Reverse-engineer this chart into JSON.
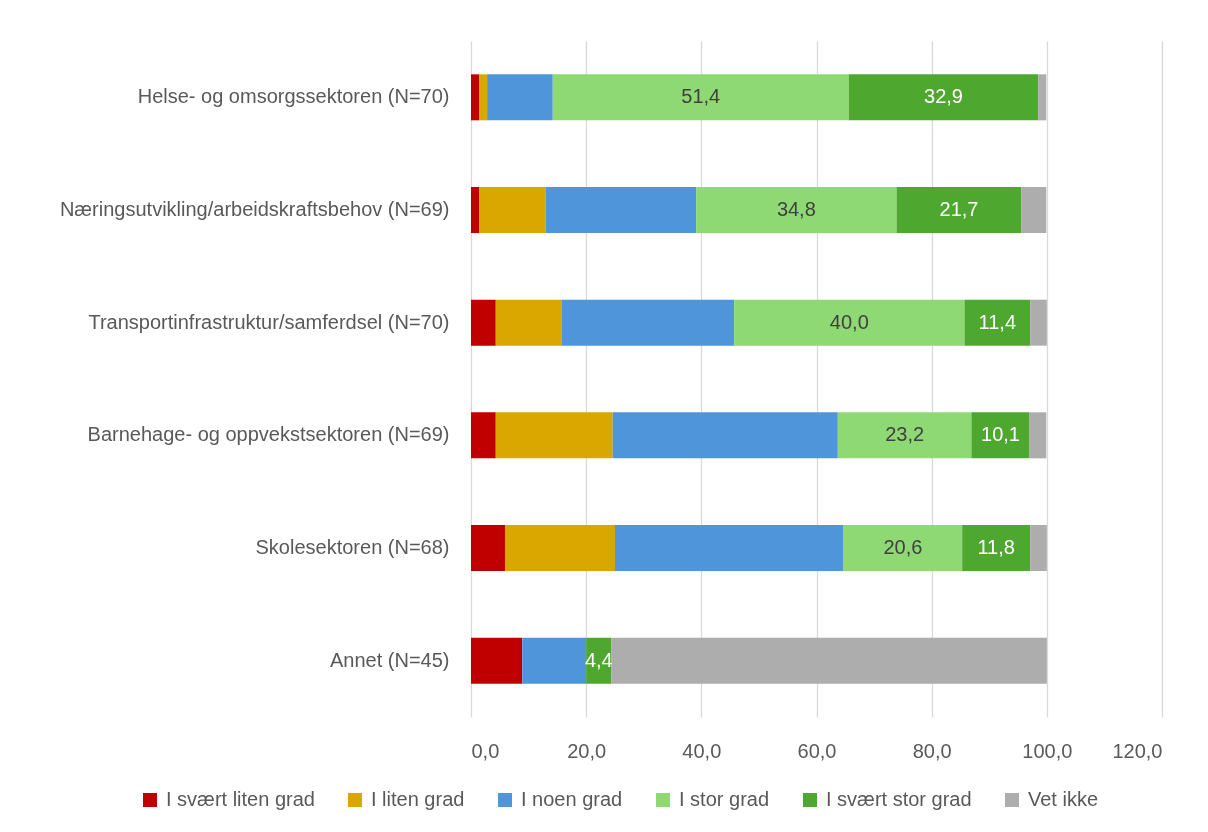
{
  "chart_data": {
    "type": "bar",
    "orientation": "horizontal",
    "stacked": true,
    "categories": [
      "Helse- og omsorgssektoren (N=70)",
      "Næringsutvikling/arbeidskraftsbehov (N=69)",
      "Transportinfrastruktur/samferdsel (N=70)",
      "Barnehage- og oppvekstsektoren (N=69)",
      "Skolesektoren (N=68)",
      "Annet (N=45)"
    ],
    "series": [
      {
        "name": "I svært liten grad",
        "color": "#c00000",
        "values": [
          1.4,
          1.4,
          4.3,
          4.3,
          5.9,
          8.9
        ]
      },
      {
        "name": "I liten grad",
        "color": "#daa600",
        "values": [
          1.4,
          11.6,
          11.4,
          20.3,
          19.1,
          0
        ]
      },
      {
        "name": "I noen grad",
        "color": "#4e95d9",
        "values": [
          11.4,
          26.1,
          30.0,
          39.1,
          39.7,
          11.1
        ]
      },
      {
        "name": "I stor grad",
        "color": "#8ed973",
        "values": [
          51.4,
          34.8,
          40.0,
          23.2,
          20.6,
          0
        ],
        "value_labels": [
          "51,4",
          "34,8",
          "40,0",
          "23,2",
          "20,6",
          null
        ]
      },
      {
        "name": "I svært stor grad",
        "color": "#4ea72e",
        "values": [
          32.9,
          21.7,
          11.4,
          10.1,
          11.8,
          4.4
        ],
        "value_labels": [
          "32,9",
          "21,7",
          "11,4",
          "10,1",
          "11,8",
          "4,4"
        ]
      },
      {
        "name": "Vet ikke",
        "color": "#adadad",
        "values": [
          1.4,
          4.3,
          2.9,
          2.9,
          2.9,
          75.6
        ]
      }
    ],
    "xlim": [
      0,
      120
    ],
    "xticks": [
      {
        "value": 0,
        "label": "0,0"
      },
      {
        "value": 20,
        "label": "20,0"
      },
      {
        "value": 40,
        "label": "40,0"
      },
      {
        "value": 60,
        "label": "60,0"
      },
      {
        "value": 80,
        "label": "80,0"
      },
      {
        "value": 100,
        "label": "100,0"
      },
      {
        "value": 120,
        "label": "120,0"
      }
    ],
    "grid": "x",
    "legend": "bottom"
  }
}
